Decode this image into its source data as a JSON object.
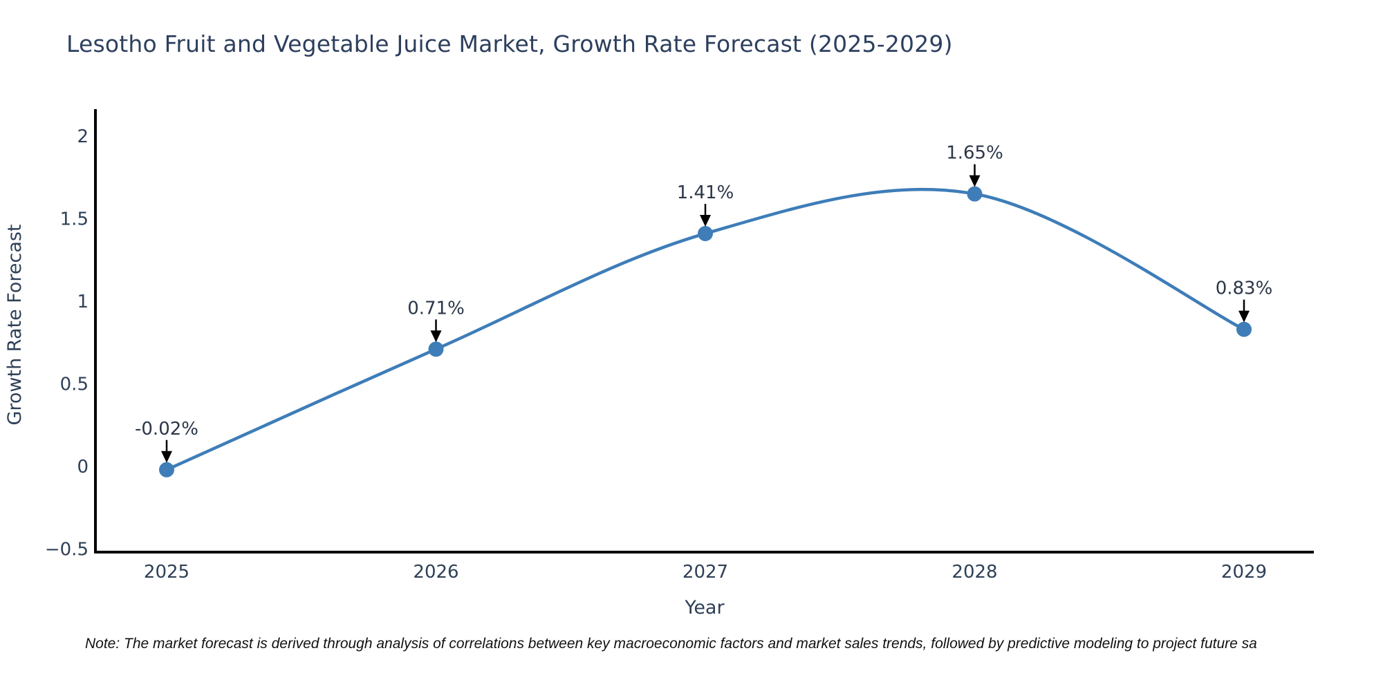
{
  "page": {
    "title": "Lesotho Fruit and Vegetable Juice Market, Growth Rate Forecast (2025-2029)",
    "note": "Note: The market forecast is derived through analysis of correlations between key macroeconomic factors and market sales trends, followed by predictive modeling to project future sa"
  },
  "chart_data": {
    "type": "line",
    "title": "Lesotho Fruit and Vegetable Juice Market, Growth Rate Forecast (2025-2029)",
    "xlabel": "Year",
    "ylabel": "Growth Rate Forecast",
    "x": [
      2025,
      2026,
      2027,
      2028,
      2029
    ],
    "series": [
      {
        "name": "Growth Rate Forecast",
        "values": [
          -0.02,
          0.71,
          1.41,
          1.65,
          0.83
        ]
      }
    ],
    "point_labels": [
      "-0.02%",
      "0.71%",
      "1.41%",
      "1.65%",
      "0.83%"
    ],
    "x_tick_labels": [
      "2025",
      "2026",
      "2027",
      "2028",
      "2029"
    ],
    "y_ticks": [
      2,
      1.5,
      1,
      0.5,
      0,
      -0.5
    ],
    "y_tick_labels": [
      "2",
      "1.5",
      "1",
      "0.5",
      "0",
      "−0.5"
    ],
    "ylim": [
      -0.53,
      2.16
    ],
    "grid": false,
    "legend": "none",
    "line_style": "spline",
    "colors": {
      "line": "#3e7db8",
      "marker": "#3e7db8",
      "axis": "#000000",
      "text": "#2e4057",
      "annotation": "#2b3648",
      "arrow": "#000000"
    }
  }
}
